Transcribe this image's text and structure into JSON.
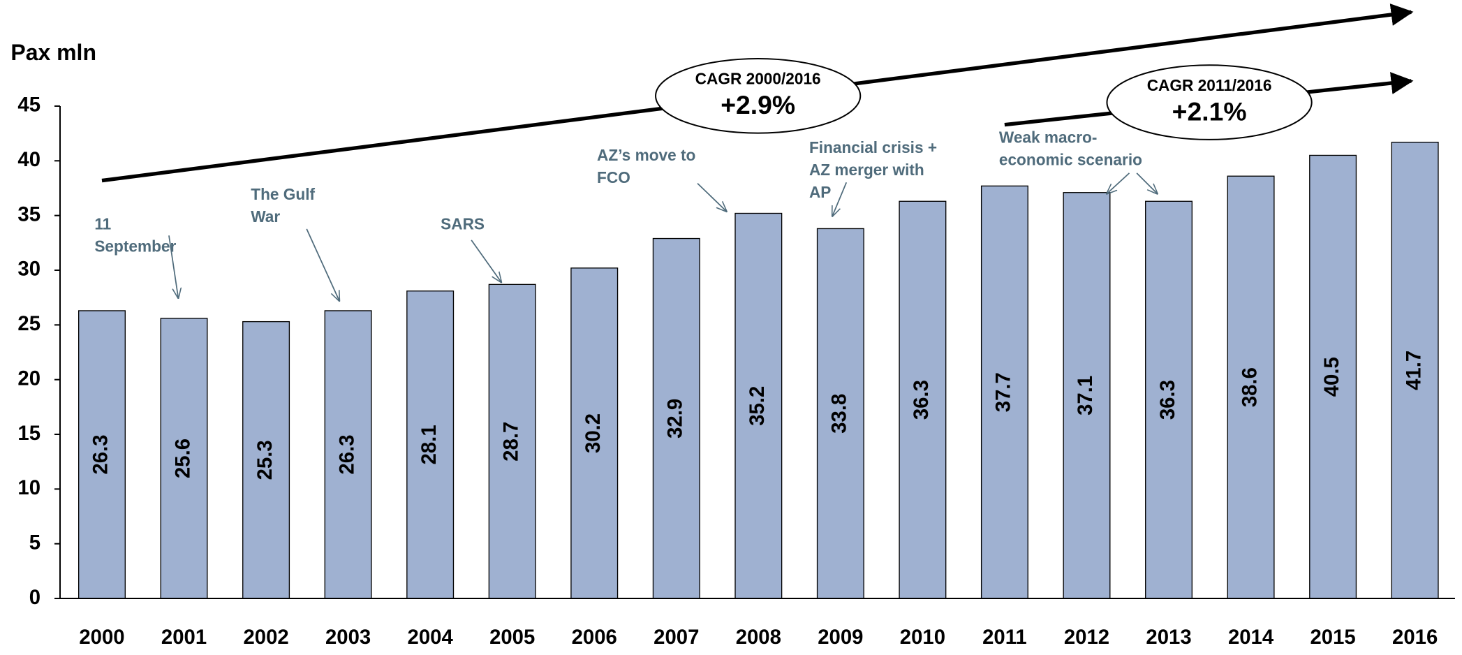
{
  "chart_data": {
    "type": "bar",
    "y_label": "Pax mln",
    "categories": [
      "2000",
      "2001",
      "2002",
      "2003",
      "2004",
      "2005",
      "2006",
      "2007",
      "2008",
      "2009",
      "2010",
      "2011",
      "2012",
      "2013",
      "2014",
      "2015",
      "2016"
    ],
    "values": [
      26.3,
      25.6,
      25.3,
      26.3,
      28.1,
      28.7,
      30.2,
      32.9,
      35.2,
      33.8,
      36.3,
      37.7,
      37.1,
      36.3,
      38.6,
      40.5,
      41.7
    ],
    "color": "#9fb1d1",
    "ylim": [
      0,
      45
    ],
    "yticks": [
      0,
      5,
      10,
      15,
      20,
      25,
      30,
      35,
      40,
      45
    ],
    "annotations": [
      {
        "lines": [
          "11",
          "September"
        ]
      },
      {
        "lines": [
          "The Gulf",
          "War"
        ]
      },
      {
        "lines": [
          "SARS"
        ]
      },
      {
        "lines": [
          "AZ’s move to",
          "FCO"
        ]
      },
      {
        "lines": [
          "Financial crisis +",
          "AZ merger with",
          "AP"
        ]
      },
      {
        "lines": [
          "Weak macro-",
          "economic scenario"
        ]
      }
    ],
    "cagr": [
      {
        "label": "CAGR 2000/2016",
        "value": "+2.9%"
      },
      {
        "label": "CAGR 2011/2016",
        "value": "+2.1%"
      }
    ]
  }
}
